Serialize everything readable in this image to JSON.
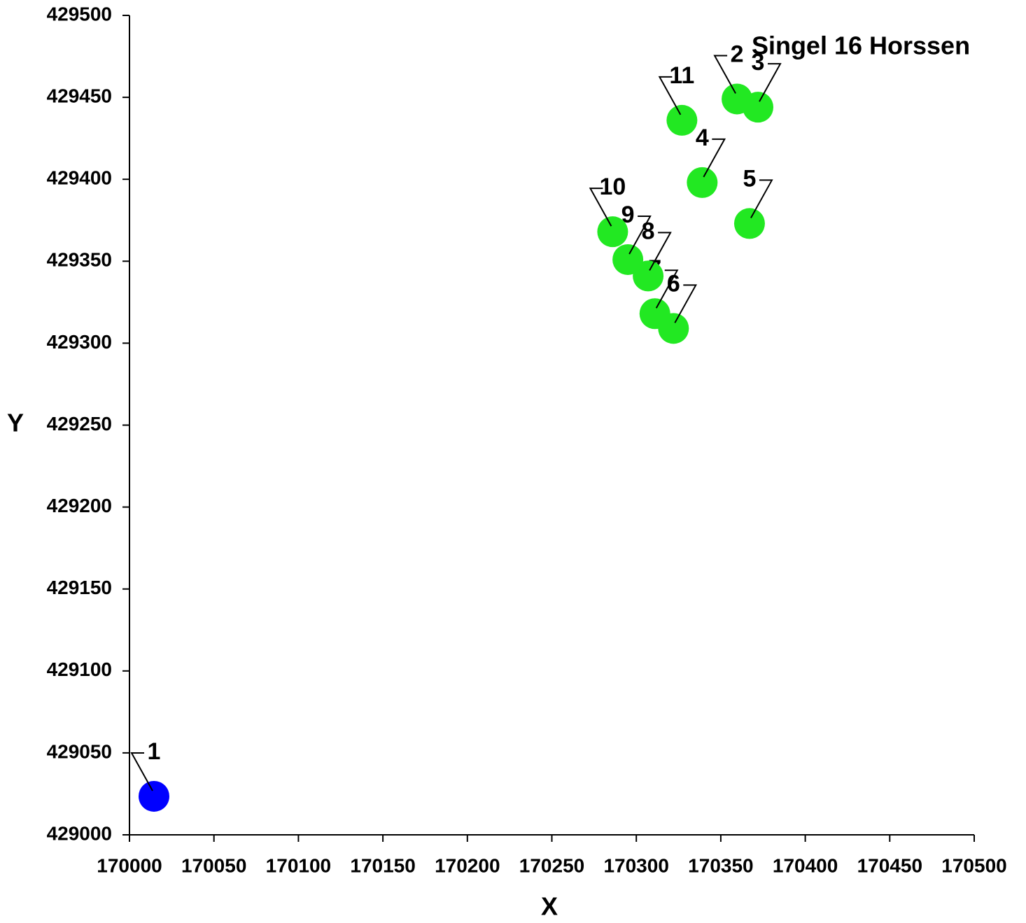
{
  "chart_data": {
    "type": "scatter",
    "title": "Singel 16 Horssen",
    "x_label": "X",
    "y_label": "Y",
    "labels": [
      "1",
      "2",
      "3",
      "4",
      "5",
      "6",
      "7",
      "8",
      "9",
      "10",
      "11"
    ],
    "x": [
      170014.5,
      170359.6,
      170372,
      170339,
      170367,
      170322,
      170311,
      170307,
      170295,
      170286,
      170327
    ],
    "y": [
      429023.5,
      429449,
      429444,
      429398,
      429373,
      429309,
      429318,
      429341,
      429351,
      429368,
      429436
    ],
    "colors": [
      "#0000ff",
      "#22e822",
      "#22e822",
      "#22e822",
      "#22e822",
      "#22e822",
      "#22e822",
      "#22e822",
      "#22e822",
      "#22e822",
      "#22e822"
    ],
    "xlim": [
      170000,
      170500
    ],
    "ylim": [
      429000,
      429500
    ],
    "xticks": [
      170000,
      170050,
      170100,
      170150,
      170200,
      170250,
      170300,
      170350,
      170400,
      170450,
      170500
    ],
    "yticks": [
      429000,
      429050,
      429100,
      429150,
      429200,
      429250,
      429300,
      429350,
      429400,
      429450,
      429500
    ],
    "grid": false
  }
}
